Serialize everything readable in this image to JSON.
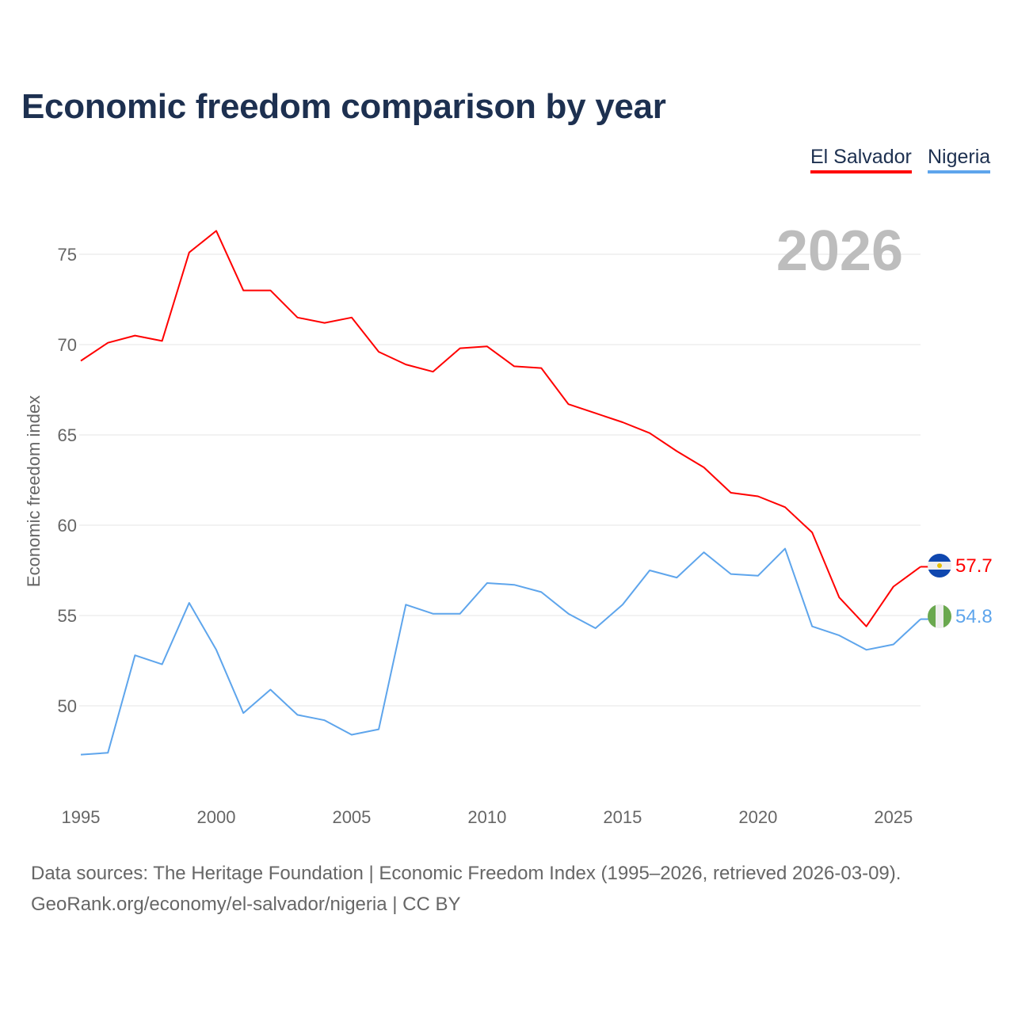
{
  "title": "Economic freedom comparison by year",
  "legend": [
    {
      "label": "El Salvador",
      "color": "#ff0000"
    },
    {
      "label": "Nigeria",
      "color": "#5ea5ec"
    }
  ],
  "footer": {
    "line1": "Data sources: The Heritage Foundation | Economic Freedom Index (1995–2026, retrieved 2026-03-09).",
    "line2": "GeoRank.org/economy/el-salvador/nigeria | CC BY"
  },
  "chart_data": {
    "type": "line",
    "title": "Economic freedom comparison by year",
    "xlabel": "",
    "ylabel": "Economic freedom index",
    "year_watermark": "2026",
    "x": [
      1995,
      1996,
      1997,
      1998,
      1999,
      2000,
      2001,
      2002,
      2003,
      2004,
      2005,
      2006,
      2007,
      2008,
      2009,
      2010,
      2011,
      2012,
      2013,
      2014,
      2015,
      2016,
      2017,
      2018,
      2019,
      2020,
      2021,
      2022,
      2023,
      2024,
      2025,
      2026
    ],
    "xlim": [
      1995,
      2026
    ],
    "ylim": [
      44.8,
      77.5
    ],
    "xticks": [
      "1995",
      "2000",
      "2005",
      "2010",
      "2015",
      "2020",
      "2025"
    ],
    "yticks": [
      "50",
      "55",
      "60",
      "65",
      "70",
      "75"
    ],
    "grid": true,
    "legend_position": "top-right",
    "series": [
      {
        "name": "El Salvador",
        "color": "#ff0000",
        "end_label": "57.7",
        "values": [
          69.1,
          70.1,
          70.5,
          70.2,
          75.1,
          76.3,
          73.0,
          73.0,
          71.5,
          71.2,
          71.5,
          69.6,
          68.9,
          68.5,
          69.8,
          69.9,
          68.8,
          68.7,
          66.7,
          66.2,
          65.7,
          65.1,
          64.1,
          63.2,
          61.8,
          61.6,
          61.0,
          59.6,
          56.0,
          54.4,
          56.6,
          57.7
        ]
      },
      {
        "name": "Nigeria",
        "color": "#5ea5ec",
        "end_label": "54.8",
        "values": [
          47.3,
          47.4,
          52.8,
          52.3,
          55.7,
          53.1,
          49.6,
          50.9,
          49.5,
          49.2,
          48.4,
          48.7,
          55.6,
          55.1,
          55.1,
          56.8,
          56.7,
          56.3,
          55.1,
          54.3,
          55.6,
          57.5,
          57.1,
          58.5,
          57.3,
          57.2,
          58.7,
          54.4,
          53.9,
          53.1,
          53.4,
          54.8
        ]
      }
    ]
  }
}
